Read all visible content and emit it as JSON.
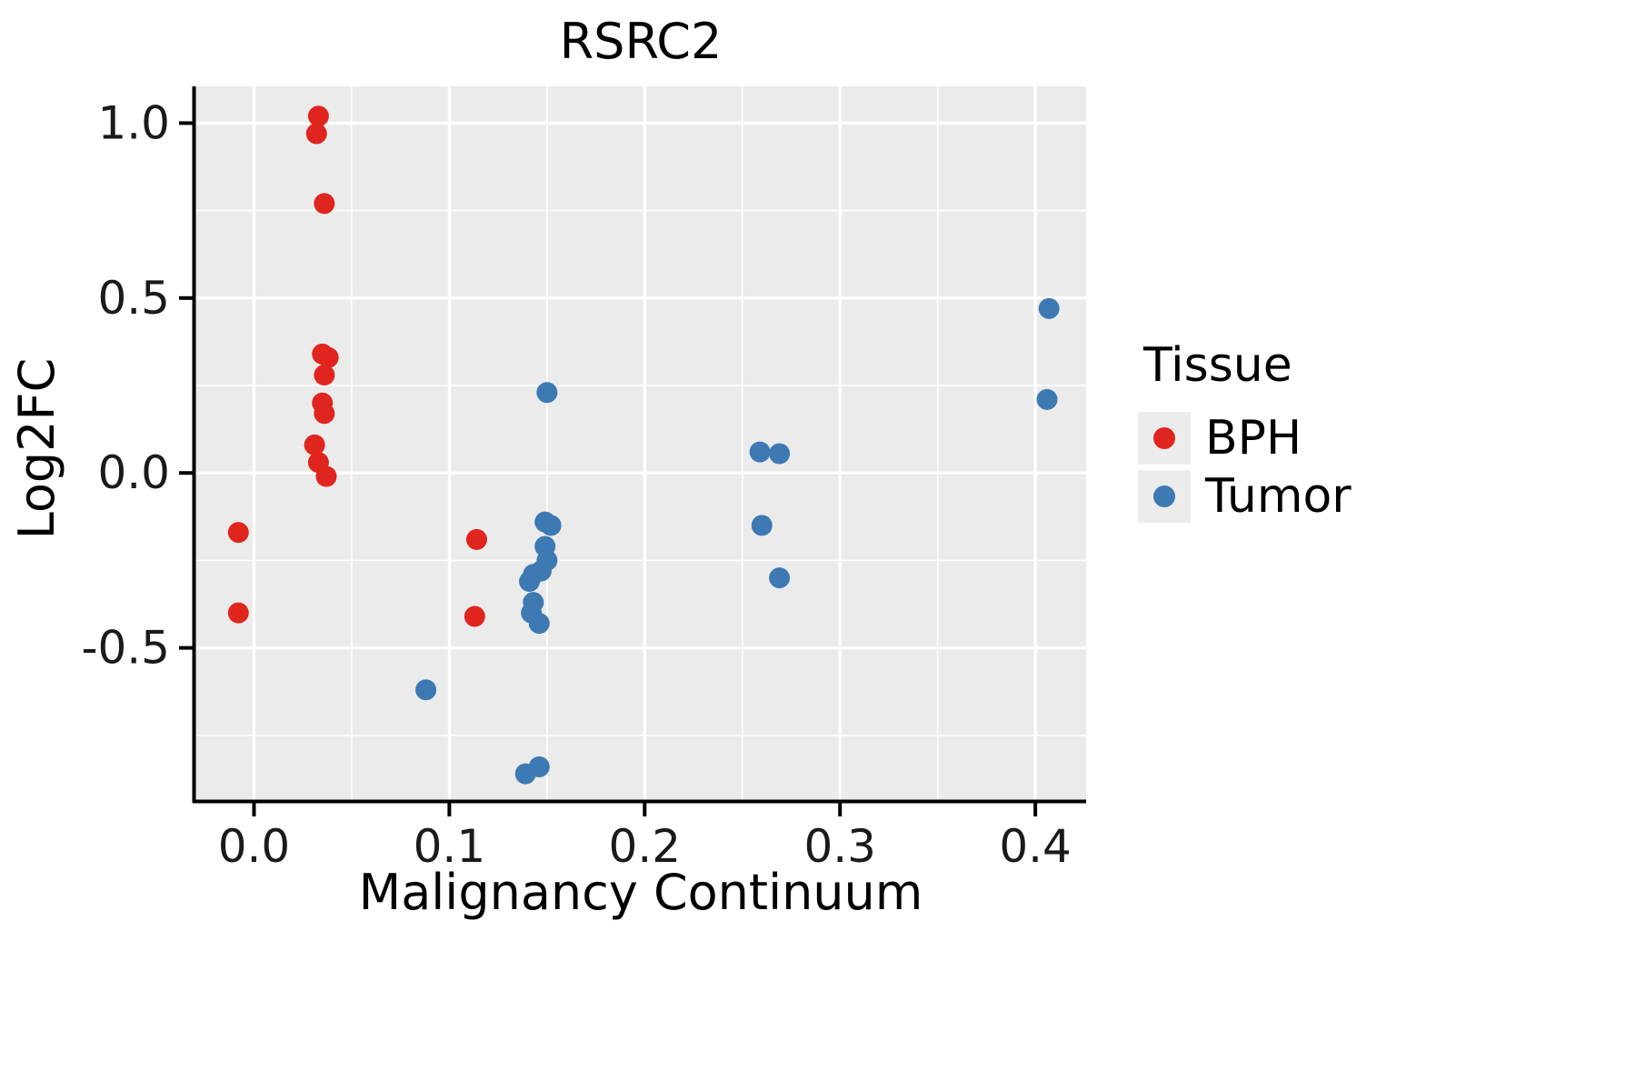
{
  "chart_data": {
    "type": "scatter",
    "title": "RSRC2",
    "xlabel": "Malignancy Continuum",
    "ylabel": "Log2FC",
    "xlim": [
      -0.03,
      0.426
    ],
    "ylim": [
      -0.935,
      1.105
    ],
    "x_ticks": [
      0.0,
      0.1,
      0.2,
      0.3,
      0.4
    ],
    "x_tick_labels": [
      "0.0",
      "0.1",
      "0.2",
      "0.3",
      "0.4"
    ],
    "y_ticks": [
      -0.5,
      0.0,
      0.5,
      1.0
    ],
    "y_tick_labels": [
      "-0.5",
      "0.0",
      "0.5",
      "1.0"
    ],
    "x_minor_ticks": [
      0.05,
      0.15,
      0.25,
      0.35
    ],
    "y_minor_ticks": [
      -0.75,
      -0.25,
      0.25,
      0.75
    ],
    "grid": true,
    "panel_bg": "#EBEBEB",
    "grid_color": "#FFFFFF",
    "axis_color": "#000000",
    "tick_label_color": "#1a1a1a",
    "legend_title": "Tissue",
    "legend_position": "right",
    "series": [
      {
        "name": "BPH",
        "color": "#E0251F",
        "points": [
          [
            -0.008,
            -0.17
          ],
          [
            -0.008,
            -0.4
          ],
          [
            0.033,
            1.02
          ],
          [
            0.032,
            0.97
          ],
          [
            0.036,
            0.77
          ],
          [
            0.035,
            0.34
          ],
          [
            0.038,
            0.33
          ],
          [
            0.036,
            0.28
          ],
          [
            0.035,
            0.2
          ],
          [
            0.036,
            0.17
          ],
          [
            0.031,
            0.08
          ],
          [
            0.033,
            0.03
          ],
          [
            0.037,
            -0.01
          ],
          [
            0.114,
            -0.19
          ],
          [
            0.113,
            -0.41
          ]
        ]
      },
      {
        "name": "Tumor",
        "color": "#3D79B3",
        "points": [
          [
            0.15,
            0.23
          ],
          [
            0.259,
            0.06
          ],
          [
            0.269,
            0.055
          ],
          [
            0.26,
            -0.15
          ],
          [
            0.269,
            -0.3
          ],
          [
            0.407,
            0.47
          ],
          [
            0.406,
            0.21
          ],
          [
            0.149,
            -0.14
          ],
          [
            0.152,
            -0.15
          ],
          [
            0.149,
            -0.21
          ],
          [
            0.15,
            -0.25
          ],
          [
            0.147,
            -0.28
          ],
          [
            0.143,
            -0.29
          ],
          [
            0.141,
            -0.31
          ],
          [
            0.143,
            -0.37
          ],
          [
            0.142,
            -0.4
          ],
          [
            0.146,
            -0.43
          ],
          [
            0.088,
            -0.62
          ],
          [
            0.139,
            -0.86
          ],
          [
            0.146,
            -0.84
          ]
        ]
      }
    ]
  }
}
